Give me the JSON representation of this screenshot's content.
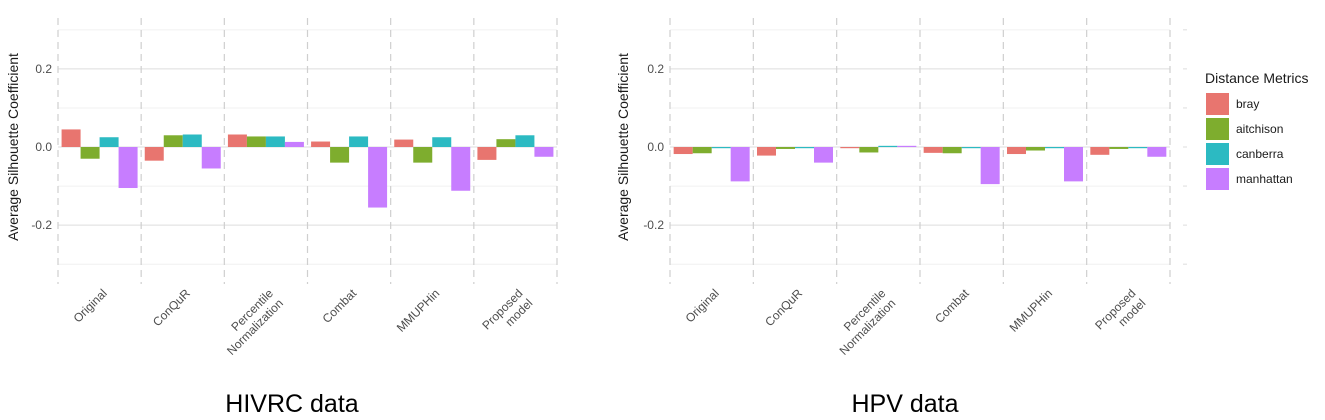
{
  "colors": {
    "bray": "#E8756F",
    "aitchison": "#7EAD2E",
    "canberra": "#2CBAC2",
    "manhattan": "#C77DFF"
  },
  "legend": {
    "title": "Distance Metrics",
    "items": [
      "bray",
      "aitchison",
      "canberra",
      "manhattan"
    ]
  },
  "chart_data": [
    {
      "type": "bar",
      "title": "HIVRC data",
      "ylabel": "Average Silhouette Coefficient",
      "xlabel": "",
      "ylim": [
        -0.32,
        0.32
      ],
      "yticks": [
        0.2,
        0.0,
        -0.2
      ],
      "ytick_labels": [
        "0.2",
        "0.0",
        "-0.2"
      ],
      "categories": [
        [
          "Original"
        ],
        [
          "ConQuR"
        ],
        [
          "Percentile",
          "Normalization"
        ],
        [
          "Combat"
        ],
        [
          "MMUPHin"
        ],
        [
          "Proposed",
          "model"
        ]
      ],
      "series": [
        {
          "name": "bray",
          "values": [
            0.045,
            -0.035,
            0.032,
            0.014,
            0.019,
            -0.033
          ]
        },
        {
          "name": "aitchison",
          "values": [
            -0.03,
            0.03,
            0.027,
            -0.04,
            -0.04,
            0.02
          ]
        },
        {
          "name": "canberra",
          "values": [
            0.025,
            0.032,
            0.027,
            0.027,
            0.025,
            0.03
          ]
        },
        {
          "name": "manhattan",
          "values": [
            -0.105,
            -0.055,
            0.013,
            -0.155,
            -0.112,
            -0.025
          ]
        }
      ]
    },
    {
      "type": "bar",
      "title": "HPV data",
      "ylabel": "Average Silhouette Coefficient",
      "xlabel": "",
      "ylim": [
        -0.32,
        0.32
      ],
      "yticks": [
        0.2,
        0.0,
        -0.2
      ],
      "ytick_labels": [
        "0.2",
        "0.0",
        "-0.2"
      ],
      "categories": [
        [
          "Original"
        ],
        [
          "ConQuR"
        ],
        [
          "Percentile",
          "Normalization"
        ],
        [
          "Combat"
        ],
        [
          "MMUPHin"
        ],
        [
          "Proposed",
          "model"
        ]
      ],
      "series": [
        {
          "name": "bray",
          "values": [
            -0.018,
            -0.022,
            -0.002,
            -0.015,
            -0.018,
            -0.02
          ]
        },
        {
          "name": "aitchison",
          "values": [
            -0.016,
            -0.005,
            -0.014,
            -0.016,
            -0.009,
            -0.005
          ]
        },
        {
          "name": "canberra",
          "values": [
            -0.003,
            -0.003,
            0.003,
            -0.002,
            -0.002,
            -0.003
          ]
        },
        {
          "name": "manhattan",
          "values": [
            -0.088,
            -0.04,
            0.003,
            -0.095,
            -0.088,
            -0.025
          ]
        }
      ]
    }
  ]
}
